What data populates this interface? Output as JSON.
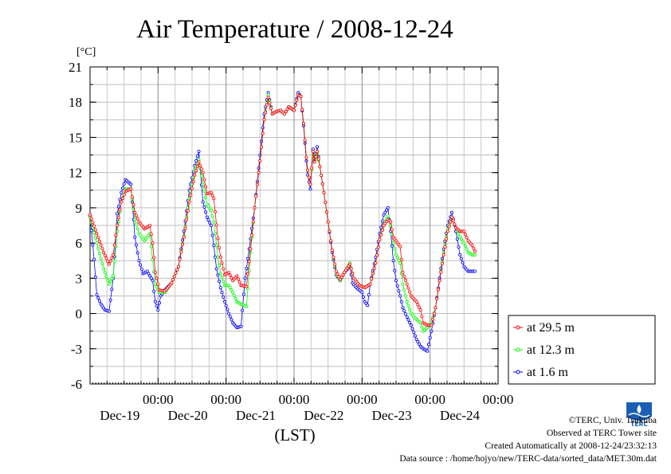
{
  "chart_data": {
    "type": "line",
    "title": "Air Temperature / 2008-12-24",
    "unit_label": "[°C]",
    "xlabel": "(LST)",
    "ylim": [
      -6,
      21
    ],
    "yticks": [
      -6,
      -3,
      0,
      3,
      6,
      9,
      12,
      15,
      18,
      21
    ],
    "x_unit": "days",
    "xlim": [
      0,
      6
    ],
    "x_tick_labels": [
      {
        "x": 1,
        "time": "00:00",
        "date": "Dec-19"
      },
      {
        "x": 2,
        "time": "00:00",
        "date": "Dec-20"
      },
      {
        "x": 3,
        "time": "00:00",
        "date": "Dec-21"
      },
      {
        "x": 4,
        "time": "00:00",
        "date": "Dec-22"
      },
      {
        "x": 5,
        "time": "00:00",
        "date": "Dec-23"
      },
      {
        "x": 6,
        "time": "00:00",
        "date": "Dec-24"
      }
    ],
    "grid": true,
    "legend_position": "bottom-right outside",
    "series": [
      {
        "name": "at 29.5 m",
        "color": "#ff0000",
        "points": [
          [
            0.0,
            8.4
          ],
          [
            0.1,
            6.8
          ],
          [
            0.2,
            5.2
          ],
          [
            0.28,
            4.2
          ],
          [
            0.34,
            5.0
          ],
          [
            0.4,
            7.5
          ],
          [
            0.46,
            9.5
          ],
          [
            0.52,
            10.4
          ],
          [
            0.6,
            10.6
          ],
          [
            0.66,
            8.6
          ],
          [
            0.72,
            7.8
          ],
          [
            0.8,
            7.2
          ],
          [
            0.88,
            7.5
          ],
          [
            0.92,
            6.0
          ],
          [
            0.96,
            3.5
          ],
          [
            1.02,
            2.0
          ],
          [
            1.1,
            1.9
          ],
          [
            1.2,
            2.6
          ],
          [
            1.3,
            4.0
          ],
          [
            1.38,
            6.5
          ],
          [
            1.46,
            9.5
          ],
          [
            1.54,
            11.8
          ],
          [
            1.6,
            12.9
          ],
          [
            1.66,
            12.0
          ],
          [
            1.72,
            10.2
          ],
          [
            1.78,
            10.3
          ],
          [
            1.82,
            9.8
          ],
          [
            1.88,
            6.4
          ],
          [
            1.92,
            4.8
          ],
          [
            1.98,
            3.3
          ],
          [
            2.04,
            3.5
          ],
          [
            2.1,
            2.8
          ],
          [
            2.16,
            3.2
          ],
          [
            2.22,
            2.4
          ],
          [
            2.3,
            2.3
          ],
          [
            2.36,
            5.5
          ],
          [
            2.42,
            9.0
          ],
          [
            2.5,
            13.0
          ],
          [
            2.56,
            16.5
          ],
          [
            2.62,
            18.4
          ],
          [
            2.68,
            17.0
          ],
          [
            2.74,
            17.2
          ],
          [
            2.8,
            17.3
          ],
          [
            2.86,
            17.0
          ],
          [
            2.92,
            17.6
          ],
          [
            3.0,
            17.3
          ],
          [
            3.06,
            18.6
          ],
          [
            3.1,
            18.5
          ],
          [
            3.14,
            16.2
          ],
          [
            3.18,
            13.3
          ],
          [
            3.2,
            12.2
          ],
          [
            3.24,
            11.0
          ],
          [
            3.28,
            13.8
          ],
          [
            3.3,
            12.9
          ],
          [
            3.34,
            13.8
          ],
          [
            3.38,
            12.5
          ],
          [
            3.44,
            10.3
          ],
          [
            3.5,
            7.8
          ],
          [
            3.56,
            5.4
          ],
          [
            3.62,
            3.6
          ],
          [
            3.68,
            2.9
          ],
          [
            3.74,
            3.5
          ],
          [
            3.82,
            4.2
          ],
          [
            3.88,
            3.0
          ],
          [
            3.96,
            2.4
          ],
          [
            4.04,
            2.2
          ],
          [
            4.12,
            2.5
          ],
          [
            4.2,
            4.3
          ],
          [
            4.26,
            6.3
          ],
          [
            4.32,
            7.5
          ],
          [
            4.38,
            8.0
          ],
          [
            4.42,
            7.8
          ],
          [
            4.46,
            6.5
          ],
          [
            4.5,
            6.2
          ],
          [
            4.56,
            5.7
          ],
          [
            4.6,
            3.5
          ],
          [
            4.66,
            2.5
          ],
          [
            4.72,
            1.5
          ],
          [
            4.8,
            1.0
          ],
          [
            4.86,
            0.3
          ],
          [
            4.9,
            -0.8
          ],
          [
            4.96,
            -1.0
          ],
          [
            5.02,
            -1.0
          ],
          [
            5.08,
            0.5
          ],
          [
            5.14,
            2.8
          ],
          [
            5.2,
            5.0
          ],
          [
            5.26,
            7.0
          ],
          [
            5.32,
            8.2
          ],
          [
            5.38,
            7.3
          ],
          [
            5.44,
            7.0
          ],
          [
            5.5,
            7.0
          ],
          [
            5.56,
            6.2
          ],
          [
            5.62,
            5.8
          ],
          [
            5.66,
            5.3
          ]
        ]
      },
      {
        "name": "at 12.3 m",
        "color": "#00ff00",
        "points": [
          [
            0.0,
            8.2
          ],
          [
            0.1,
            6.0
          ],
          [
            0.2,
            3.8
          ],
          [
            0.28,
            2.5
          ],
          [
            0.34,
            3.2
          ],
          [
            0.4,
            7.0
          ],
          [
            0.46,
            9.5
          ],
          [
            0.52,
            10.6
          ],
          [
            0.6,
            10.6
          ],
          [
            0.66,
            8.0
          ],
          [
            0.72,
            6.8
          ],
          [
            0.8,
            6.2
          ],
          [
            0.88,
            6.8
          ],
          [
            0.92,
            4.6
          ],
          [
            0.96,
            2.5
          ],
          [
            1.02,
            1.8
          ],
          [
            1.1,
            1.8
          ],
          [
            1.2,
            2.6
          ],
          [
            1.3,
            4.0
          ],
          [
            1.38,
            6.6
          ],
          [
            1.46,
            9.8
          ],
          [
            1.54,
            12.2
          ],
          [
            1.6,
            13.1
          ],
          [
            1.66,
            11.0
          ],
          [
            1.72,
            9.3
          ],
          [
            1.78,
            8.8
          ],
          [
            1.82,
            7.8
          ],
          [
            1.88,
            4.8
          ],
          [
            1.92,
            3.4
          ],
          [
            1.98,
            2.4
          ],
          [
            2.04,
            2.4
          ],
          [
            2.1,
            1.8
          ],
          [
            2.16,
            1.0
          ],
          [
            2.22,
            0.8
          ],
          [
            2.3,
            0.6
          ],
          [
            2.36,
            5.2
          ],
          [
            2.42,
            9.0
          ],
          [
            2.5,
            13.0
          ],
          [
            2.56,
            16.5
          ],
          [
            2.62,
            18.6
          ],
          [
            2.68,
            17.0
          ],
          [
            2.74,
            17.2
          ],
          [
            2.8,
            17.3
          ],
          [
            2.86,
            17.0
          ],
          [
            2.92,
            17.6
          ],
          [
            3.0,
            17.3
          ],
          [
            3.06,
            18.6
          ],
          [
            3.1,
            18.5
          ],
          [
            3.14,
            16.2
          ],
          [
            3.18,
            13.3
          ],
          [
            3.2,
            12.2
          ],
          [
            3.24,
            11.0
          ],
          [
            3.28,
            13.5
          ],
          [
            3.3,
            12.9
          ],
          [
            3.34,
            13.6
          ],
          [
            3.38,
            12.5
          ],
          [
            3.44,
            10.3
          ],
          [
            3.5,
            7.8
          ],
          [
            3.56,
            5.4
          ],
          [
            3.62,
            3.4
          ],
          [
            3.68,
            2.8
          ],
          [
            3.74,
            3.5
          ],
          [
            3.82,
            4.3
          ],
          [
            3.88,
            3.0
          ],
          [
            3.96,
            2.4
          ],
          [
            4.04,
            2.2
          ],
          [
            4.12,
            2.5
          ],
          [
            4.2,
            4.3
          ],
          [
            4.26,
            6.3
          ],
          [
            4.32,
            7.6
          ],
          [
            4.38,
            8.3
          ],
          [
            4.42,
            7.5
          ],
          [
            4.46,
            6.0
          ],
          [
            4.5,
            5.0
          ],
          [
            4.56,
            4.3
          ],
          [
            4.6,
            2.5
          ],
          [
            4.66,
            1.0
          ],
          [
            4.72,
            0.0
          ],
          [
            4.8,
            -0.5
          ],
          [
            4.86,
            -0.8
          ],
          [
            4.9,
            -1.5
          ],
          [
            4.96,
            -1.2
          ],
          [
            5.02,
            -0.8
          ],
          [
            5.08,
            0.5
          ],
          [
            5.14,
            2.8
          ],
          [
            5.2,
            5.2
          ],
          [
            5.26,
            7.2
          ],
          [
            5.32,
            8.2
          ],
          [
            5.38,
            7.3
          ],
          [
            5.44,
            6.5
          ],
          [
            5.5,
            6.0
          ],
          [
            5.56,
            5.2
          ],
          [
            5.62,
            5.0
          ],
          [
            5.66,
            5.0
          ]
        ]
      },
      {
        "name": "at 1.6 m",
        "color": "#0000ff",
        "points": [
          [
            0.0,
            8.3
          ],
          [
            0.06,
            4.6
          ],
          [
            0.1,
            1.6
          ],
          [
            0.16,
            0.8
          ],
          [
            0.22,
            0.3
          ],
          [
            0.28,
            0.2
          ],
          [
            0.34,
            3.0
          ],
          [
            0.4,
            8.5
          ],
          [
            0.46,
            10.3
          ],
          [
            0.52,
            11.4
          ],
          [
            0.6,
            11.0
          ],
          [
            0.66,
            6.5
          ],
          [
            0.72,
            4.5
          ],
          [
            0.78,
            3.4
          ],
          [
            0.84,
            3.6
          ],
          [
            0.88,
            3.2
          ],
          [
            0.92,
            2.8
          ],
          [
            0.96,
            1.0
          ],
          [
            1.0,
            0.3
          ],
          [
            1.04,
            1.5
          ],
          [
            1.1,
            2.0
          ],
          [
            1.2,
            2.6
          ],
          [
            1.3,
            4.0
          ],
          [
            1.38,
            7.0
          ],
          [
            1.46,
            10.5
          ],
          [
            1.54,
            12.6
          ],
          [
            1.6,
            13.8
          ],
          [
            1.66,
            9.5
          ],
          [
            1.72,
            8.2
          ],
          [
            1.78,
            7.5
          ],
          [
            1.82,
            5.8
          ],
          [
            1.86,
            3.8
          ],
          [
            1.92,
            2.2
          ],
          [
            1.98,
            1.0
          ],
          [
            2.04,
            0.0
          ],
          [
            2.1,
            -0.8
          ],
          [
            2.16,
            -1.2
          ],
          [
            2.22,
            -1.1
          ],
          [
            2.28,
            3.0
          ],
          [
            2.34,
            5.5
          ],
          [
            2.42,
            9.0
          ],
          [
            2.5,
            13.5
          ],
          [
            2.56,
            17.0
          ],
          [
            2.62,
            18.8
          ],
          [
            2.68,
            17.0
          ],
          [
            2.74,
            17.2
          ],
          [
            2.8,
            17.3
          ],
          [
            2.86,
            17.0
          ],
          [
            2.92,
            17.6
          ],
          [
            3.0,
            17.3
          ],
          [
            3.06,
            18.8
          ],
          [
            3.1,
            18.5
          ],
          [
            3.14,
            16.0
          ],
          [
            3.18,
            13.0
          ],
          [
            3.2,
            11.8
          ],
          [
            3.24,
            10.6
          ],
          [
            3.28,
            14.0
          ],
          [
            3.3,
            13.0
          ],
          [
            3.34,
            14.2
          ],
          [
            3.38,
            12.5
          ],
          [
            3.44,
            10.3
          ],
          [
            3.5,
            7.8
          ],
          [
            3.56,
            5.2
          ],
          [
            3.62,
            3.3
          ],
          [
            3.68,
            2.8
          ],
          [
            3.74,
            3.5
          ],
          [
            3.82,
            4.0
          ],
          [
            3.86,
            2.6
          ],
          [
            3.92,
            2.2
          ],
          [
            3.96,
            2.0
          ],
          [
            4.0,
            1.8
          ],
          [
            4.04,
            1.0
          ],
          [
            4.08,
            0.7
          ],
          [
            4.12,
            2.5
          ],
          [
            4.2,
            4.8
          ],
          [
            4.26,
            6.8
          ],
          [
            4.32,
            8.4
          ],
          [
            4.38,
            9.0
          ],
          [
            4.42,
            7.0
          ],
          [
            4.46,
            4.5
          ],
          [
            4.5,
            2.8
          ],
          [
            4.56,
            1.5
          ],
          [
            4.6,
            0.5
          ],
          [
            4.66,
            -0.3
          ],
          [
            4.72,
            -1.0
          ],
          [
            4.8,
            -2.2
          ],
          [
            4.86,
            -2.8
          ],
          [
            4.9,
            -3.0
          ],
          [
            4.96,
            -3.2
          ],
          [
            5.02,
            -1.5
          ],
          [
            5.08,
            0.5
          ],
          [
            5.14,
            3.0
          ],
          [
            5.2,
            5.5
          ],
          [
            5.26,
            7.5
          ],
          [
            5.32,
            8.6
          ],
          [
            5.38,
            7.0
          ],
          [
            5.44,
            5.0
          ],
          [
            5.5,
            4.0
          ],
          [
            5.56,
            3.6
          ],
          [
            5.62,
            3.6
          ],
          [
            5.66,
            3.6
          ]
        ]
      }
    ]
  },
  "credits": {
    "copyright": "©TERC, Univ. Tsukuba",
    "observed": "Observed at TERC Tower site",
    "created": "Created Automatically at 2008-12-24/23:32:13",
    "source": "Data source : /home/hojyo/new/TERC-data/sorted_data/MET.30m.dat",
    "logo_text": "TERC",
    "logo_color": "#1a5fb4"
  }
}
